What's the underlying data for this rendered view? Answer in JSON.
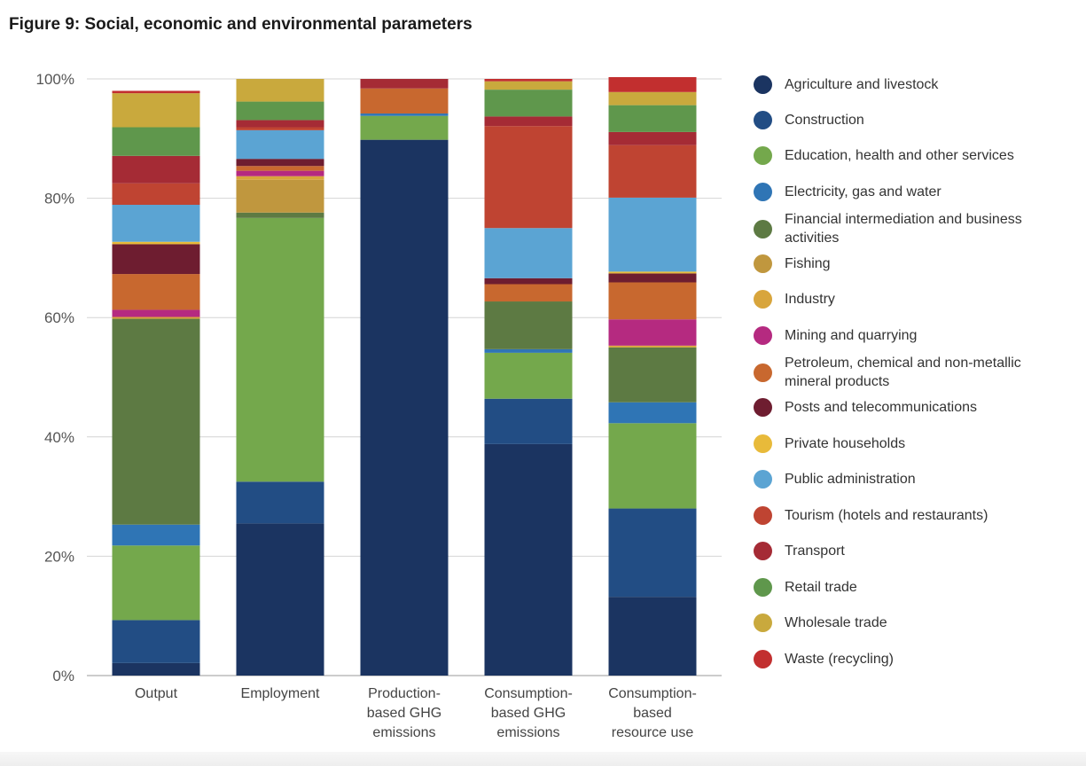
{
  "title": "Figure 9: Social, economic and environmental parameters",
  "chart_data": {
    "type": "bar",
    "stacked": true,
    "ylim": [
      0,
      100
    ],
    "y_ticks": [
      "0%",
      "20%",
      "40%",
      "60%",
      "80%",
      "100%"
    ],
    "grid": true,
    "legend_position": "right",
    "categories": [
      [
        "Output"
      ],
      [
        "Employment"
      ],
      [
        "Production-",
        "based GHG",
        "emissions"
      ],
      [
        "Consumption-",
        "based GHG",
        "emissions"
      ],
      [
        "Consumption-",
        "based",
        "resource use"
      ]
    ],
    "series": [
      {
        "name": "Agriculture and livestock",
        "color": "#1b3461",
        "values": [
          2.1,
          25.5,
          89.8,
          38.8,
          13.2
        ]
      },
      {
        "name": "Construction",
        "color": "#224d84",
        "values": [
          7.2,
          7.0,
          0.0,
          7.6,
          14.8
        ]
      },
      {
        "name": "Education, health and other services",
        "color": "#74a84c",
        "values": [
          12.5,
          44.2,
          4.0,
          7.7,
          14.3
        ]
      },
      {
        "name": "Electricity, gas and water",
        "color": "#2f75b5",
        "values": [
          3.5,
          0.0,
          0.4,
          0.6,
          3.5
        ]
      },
      {
        "name": "Financial intermediation and business activities",
        "color": "#5d7a43",
        "values": [
          34.5,
          0.9,
          0.0,
          8.0,
          9.2
        ]
      },
      {
        "name": "Fishing",
        "color": "#c0973e",
        "values": [
          0.0,
          5.5,
          0.0,
          0.0,
          0.0
        ]
      },
      {
        "name": "Industry",
        "color": "#d8a53c",
        "values": [
          0.3,
          0.6,
          0.0,
          0.0,
          0.3
        ]
      },
      {
        "name": "Mining and quarrying",
        "color": "#b52a80",
        "values": [
          1.2,
          0.9,
          0.0,
          0.0,
          4.4
        ]
      },
      {
        "name": "Petroleum, chemical and non-metallic mineral products",
        "color": "#c8682f",
        "values": [
          6.0,
          0.8,
          4.2,
          2.9,
          6.2
        ]
      },
      {
        "name": "Posts and telecommunications",
        "color": "#6e1d30",
        "values": [
          5.0,
          1.2,
          0.0,
          1.0,
          1.5
        ]
      },
      {
        "name": "Private households",
        "color": "#e8ba3a",
        "values": [
          0.4,
          0.0,
          0.0,
          0.0,
          0.3
        ]
      },
      {
        "name": "Public administration",
        "color": "#5ba4d3",
        "values": [
          6.2,
          4.8,
          0.0,
          8.4,
          12.4
        ]
      },
      {
        "name": "Tourism (hotels and restaurants)",
        "color": "#bf4432",
        "values": [
          3.6,
          0.5,
          0.0,
          17.1,
          8.8
        ]
      },
      {
        "name": "Transport",
        "color": "#a52b35",
        "values": [
          4.6,
          1.2,
          1.6,
          1.6,
          2.2
        ]
      },
      {
        "name": "Retail trade",
        "color": "#5f974c",
        "values": [
          4.8,
          3.1,
          0.0,
          4.5,
          4.5
        ]
      },
      {
        "name": "Wholesale trade",
        "color": "#c9a93d",
        "values": [
          5.7,
          3.8,
          0.0,
          1.4,
          2.2
        ]
      },
      {
        "name": "Waste (recycling)",
        "color": "#c22f2f",
        "values": [
          0.4,
          0.0,
          0.0,
          0.4,
          2.5
        ]
      }
    ]
  }
}
